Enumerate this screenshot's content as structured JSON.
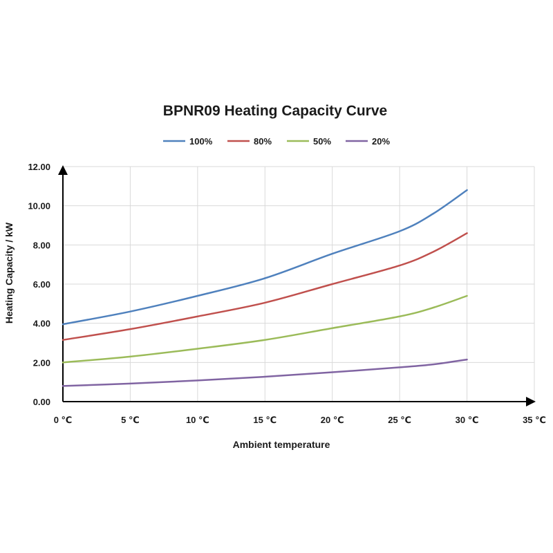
{
  "chart_data": {
    "type": "line",
    "title": "BPNR09 Heating Capacity Curve",
    "xlabel": "Ambient temperature",
    "ylabel": "Heating Capacity / kW",
    "xlim": [
      0,
      35
    ],
    "ylim": [
      0,
      12
    ],
    "x_ticks": [
      0,
      5,
      10,
      15,
      20,
      25,
      30,
      35
    ],
    "x_tick_labels": [
      "0 ℃",
      "5 ℃",
      "10 ℃",
      "15 ℃",
      "20 ℃",
      "25 ℃",
      "30 ℃",
      "35 ℃"
    ],
    "y_ticks": [
      0,
      2,
      4,
      6,
      8,
      10,
      12
    ],
    "y_tick_labels": [
      "0.00",
      "2.00",
      "4.00",
      "6.00",
      "8.00",
      "10.00",
      "12.00"
    ],
    "grid": true,
    "legend_position": "top-center",
    "x": [
      0,
      5,
      10,
      15,
      20,
      25,
      27.5,
      30
    ],
    "series": [
      {
        "name": "100%",
        "color": "#4f81bd",
        "values": [
          3.95,
          4.6,
          5.4,
          6.3,
          7.55,
          8.7,
          9.6,
          10.8
        ]
      },
      {
        "name": "80%",
        "color": "#c0504d",
        "values": [
          3.15,
          3.7,
          4.35,
          5.05,
          6.0,
          6.95,
          7.65,
          8.6
        ]
      },
      {
        "name": "50%",
        "color": "#9bbb59",
        "values": [
          2.0,
          2.3,
          2.7,
          3.15,
          3.75,
          4.35,
          4.8,
          5.4
        ]
      },
      {
        "name": "20%",
        "color": "#8064a2",
        "values": [
          0.8,
          0.92,
          1.08,
          1.27,
          1.5,
          1.75,
          1.9,
          2.15
        ]
      }
    ]
  }
}
